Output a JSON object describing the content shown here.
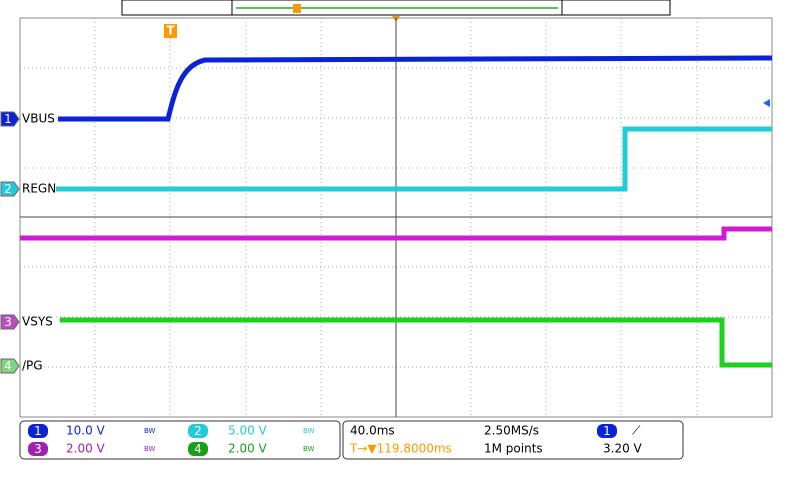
{
  "trigger_marker": "T",
  "channels": [
    {
      "number": "1",
      "label": "VBUS",
      "scale": "10.0 V",
      "bw": "BW"
    },
    {
      "number": "2",
      "label": "REGN",
      "scale": "5.00 V",
      "bw": "BW"
    },
    {
      "number": "3",
      "label": "VSYS",
      "scale": "2.00 V",
      "bw": "BW"
    },
    {
      "number": "4",
      "label": "/PG",
      "scale": "2.00 V",
      "bw": "BW"
    }
  ],
  "timebase": {
    "scale": "40.0ms",
    "sample_rate": "2.50MS/s",
    "trigger_position": "T→▼119.8000ms",
    "record_length": "1M points"
  },
  "trigger": {
    "source": "1",
    "slope": "⟋",
    "level": "3.20 V"
  }
}
